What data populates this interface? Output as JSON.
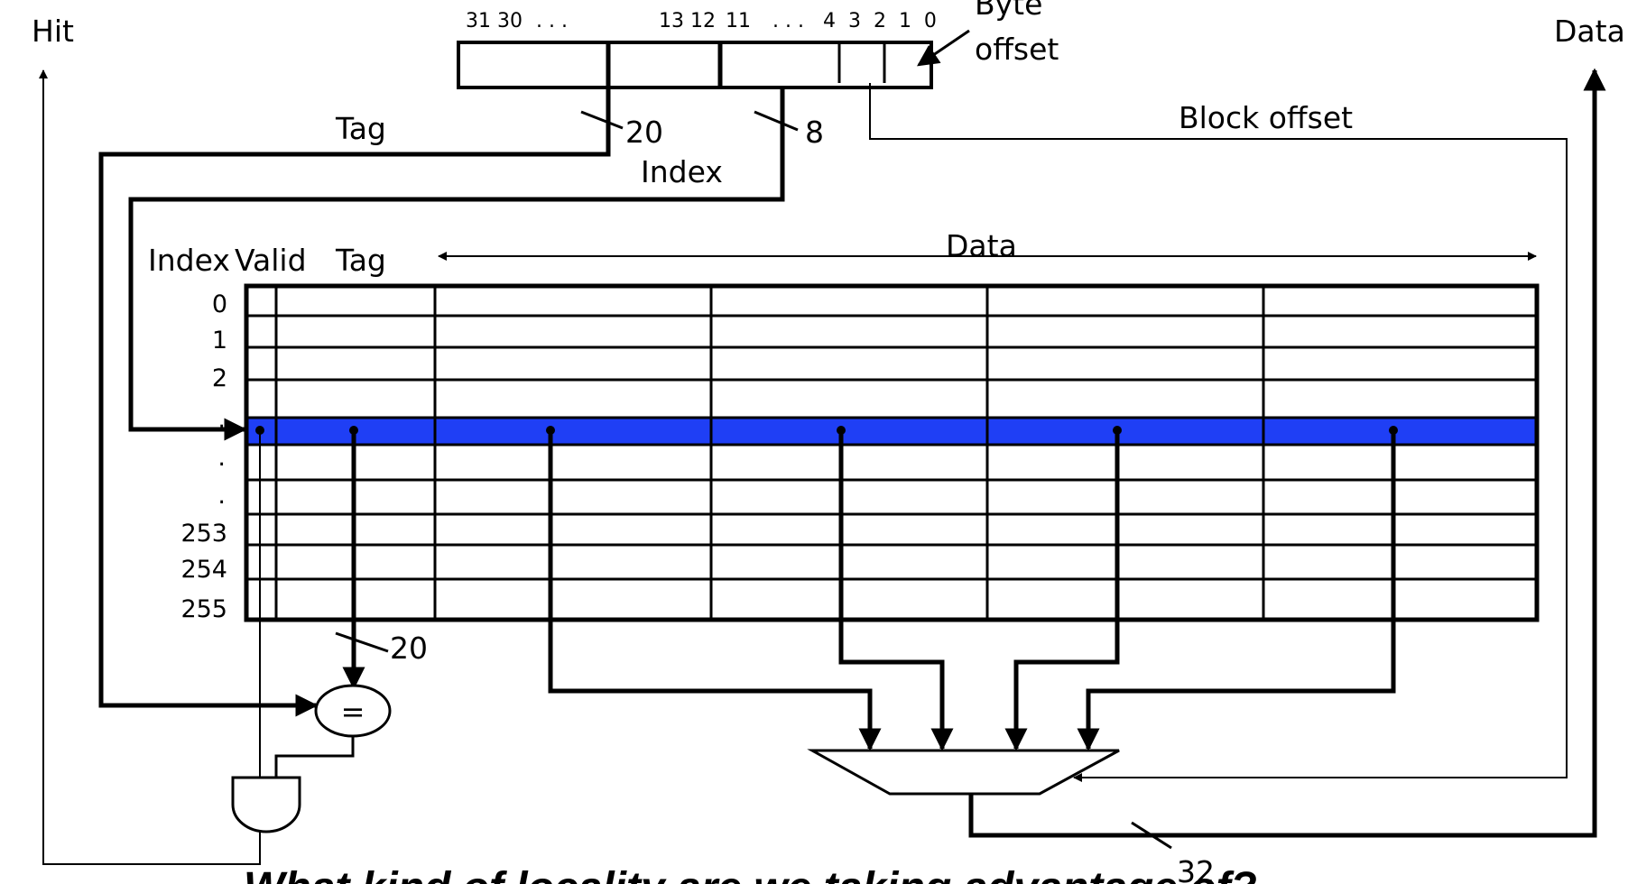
{
  "labels": {
    "hit": "Hit",
    "data_out": "Data",
    "byte_offset_line1": "Byte",
    "byte_offset_line2": "offset",
    "tag": "Tag",
    "index": "Index",
    "block_offset": "Block offset",
    "tag_width": "20",
    "index_width": "8",
    "compare_width": "20",
    "output_width": "32",
    "comparator_symbol": "="
  },
  "address_bits": {
    "high": "31 30",
    "dots1": ". . .",
    "mid": "13 12",
    "eleven": "11",
    "dots2": ". . .",
    "low": "4  3  2  1  0"
  },
  "table": {
    "col_index": "Index",
    "col_valid": "Valid",
    "col_tag": "Tag",
    "col_data": "Data",
    "rows": [
      "0",
      "1",
      "2",
      ".",
      ".",
      ".",
      "253",
      "254",
      "255"
    ],
    "highlight_color": "#1f3ff5"
  },
  "caption": "What kind of locality are we taking advantage of?"
}
